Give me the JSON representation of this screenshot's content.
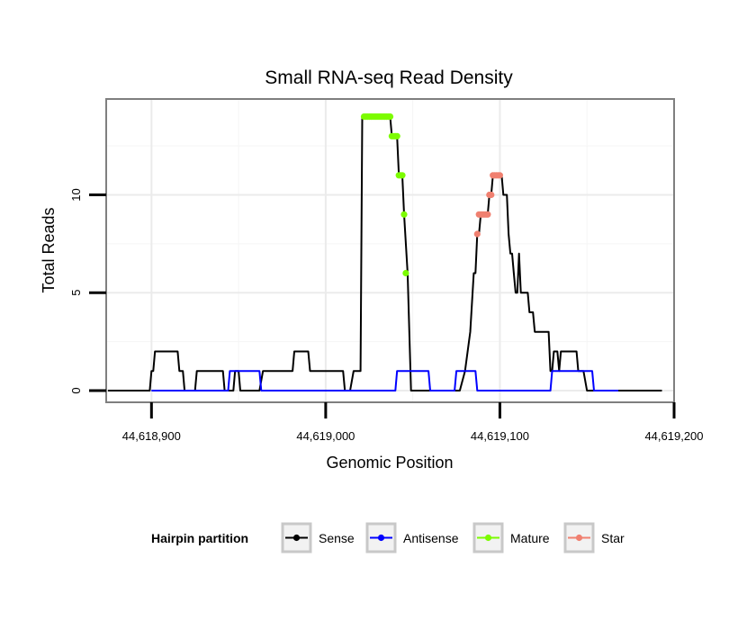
{
  "chart_data": {
    "type": "line",
    "title": "Small RNA-seq Read Density",
    "xlabel": "Genomic Position",
    "ylabel": "Total Reads",
    "xlim": [
      44618874,
      44619200
    ],
    "ylim": [
      -0.6,
      14.9
    ],
    "x_ticks": [
      44618900,
      44619000,
      44619100,
      44619200
    ],
    "x_tick_labels": [
      "44,618,900",
      "44,619,000",
      "44,619,100",
      "44,619,200"
    ],
    "y_ticks": [
      0,
      5,
      10
    ],
    "y_tick_labels": [
      "0",
      "5",
      "10"
    ],
    "grid": true,
    "legend": {
      "title": "Hairpin partition",
      "position": "bottom",
      "entries": [
        {
          "label": "Sense",
          "color": "#000000"
        },
        {
          "label": "Antisense",
          "color": "#0000ff"
        },
        {
          "label": "Mature",
          "color": "#7cfc00"
        },
        {
          "label": "Star",
          "color": "#f08070"
        }
      ]
    },
    "series": [
      {
        "name": "Sense",
        "color": "#000000",
        "style": "line",
        "points": [
          [
            44618875,
            0
          ],
          [
            44618899,
            0
          ],
          [
            44618900,
            1
          ],
          [
            44618901,
            1
          ],
          [
            44618902,
            2
          ],
          [
            44618915,
            2
          ],
          [
            44618916,
            1
          ],
          [
            44618918,
            1
          ],
          [
            44618919,
            0
          ],
          [
            44618925,
            0
          ],
          [
            44618926,
            1
          ],
          [
            44618941,
            1
          ],
          [
            44618942,
            0
          ],
          [
            44618947,
            0
          ],
          [
            44618948,
            1
          ],
          [
            44618950,
            1
          ],
          [
            44618951,
            0
          ],
          [
            44618962,
            0
          ],
          [
            44618964,
            1
          ],
          [
            44618981,
            1
          ],
          [
            44618982,
            2
          ],
          [
            44618990,
            2
          ],
          [
            44618991,
            1
          ],
          [
            44619010,
            1
          ],
          [
            44619011,
            0
          ],
          [
            44619014,
            0
          ],
          [
            44619016,
            1
          ],
          [
            44619020,
            1
          ],
          [
            44619021,
            14
          ],
          [
            44619037,
            14
          ],
          [
            44619038,
            13
          ],
          [
            44619041,
            13
          ],
          [
            44619042,
            11
          ],
          [
            44619044,
            11
          ],
          [
            44619045,
            9
          ],
          [
            44619047,
            6
          ],
          [
            44619049,
            0
          ],
          [
            44619077,
            0
          ],
          [
            44619080,
            1
          ],
          [
            44619083,
            3
          ],
          [
            44619085,
            6
          ],
          [
            44619086,
            6
          ],
          [
            44619087,
            8
          ],
          [
            44619088,
            8
          ],
          [
            44619089,
            9
          ],
          [
            44619093,
            9
          ],
          [
            44619094,
            10
          ],
          [
            44619095,
            10
          ],
          [
            44619096,
            11
          ],
          [
            44619101,
            11
          ],
          [
            44619102,
            10
          ],
          [
            44619104,
            10
          ],
          [
            44619105,
            8
          ],
          [
            44619106,
            7
          ],
          [
            44619107,
            7
          ],
          [
            44619108,
            6
          ],
          [
            44619109,
            5
          ],
          [
            44619110,
            5
          ],
          [
            44619111,
            7
          ],
          [
            44619112,
            5
          ],
          [
            44619116,
            5
          ],
          [
            44619117,
            4
          ],
          [
            44619119,
            4
          ],
          [
            44619120,
            3
          ],
          [
            44619128,
            3
          ],
          [
            44619129,
            1
          ],
          [
            44619130,
            1
          ],
          [
            44619131,
            2
          ],
          [
            44619133,
            2
          ],
          [
            44619134,
            1
          ],
          [
            44619135,
            2
          ],
          [
            44619144,
            2
          ],
          [
            44619145,
            1
          ],
          [
            44619148,
            1
          ],
          [
            44619150,
            0
          ],
          [
            44619193,
            0
          ]
        ]
      },
      {
        "name": "Antisense",
        "color": "#0000ff",
        "style": "line",
        "points": [
          [
            44618900,
            0
          ],
          [
            44618939,
            0
          ],
          [
            44618944,
            0
          ],
          [
            44618945,
            1
          ],
          [
            44618962,
            1
          ],
          [
            44618963,
            0
          ],
          [
            44619040,
            0
          ],
          [
            44619041,
            1
          ],
          [
            44619059,
            1
          ],
          [
            44619060,
            0
          ],
          [
            44619074,
            0
          ],
          [
            44619075,
            1
          ],
          [
            44619086,
            1
          ],
          [
            44619087,
            0
          ],
          [
            44619129,
            0
          ],
          [
            44619130,
            1
          ],
          [
            44619153,
            1
          ],
          [
            44619154,
            0
          ],
          [
            44619168,
            0
          ]
        ]
      },
      {
        "name": "Mature",
        "color": "#7cfc00",
        "style": "points",
        "points": [
          [
            44619022,
            14
          ],
          [
            44619023,
            14
          ],
          [
            44619024,
            14
          ],
          [
            44619025,
            14
          ],
          [
            44619026,
            14
          ],
          [
            44619027,
            14
          ],
          [
            44619028,
            14
          ],
          [
            44619029,
            14
          ],
          [
            44619030,
            14
          ],
          [
            44619031,
            14
          ],
          [
            44619032,
            14
          ],
          [
            44619033,
            14
          ],
          [
            44619034,
            14
          ],
          [
            44619035,
            14
          ],
          [
            44619036,
            14
          ],
          [
            44619037,
            14
          ],
          [
            44619038,
            13
          ],
          [
            44619039,
            13
          ],
          [
            44619040,
            13
          ],
          [
            44619041,
            13
          ],
          [
            44619042,
            11
          ],
          [
            44619043,
            11
          ],
          [
            44619044,
            11
          ],
          [
            44619045,
            9
          ],
          [
            44619046,
            6
          ]
        ]
      },
      {
        "name": "Star",
        "color": "#f08070",
        "style": "points",
        "points": [
          [
            44619087,
            8
          ],
          [
            44619088,
            9
          ],
          [
            44619089,
            9
          ],
          [
            44619090,
            9
          ],
          [
            44619091,
            9
          ],
          [
            44619092,
            9
          ],
          [
            44619093,
            9
          ],
          [
            44619094,
            10
          ],
          [
            44619095,
            10
          ],
          [
            44619096,
            11
          ],
          [
            44619097,
            11
          ],
          [
            44619098,
            11
          ],
          [
            44619099,
            11
          ],
          [
            44619100,
            11
          ]
        ]
      }
    ]
  }
}
